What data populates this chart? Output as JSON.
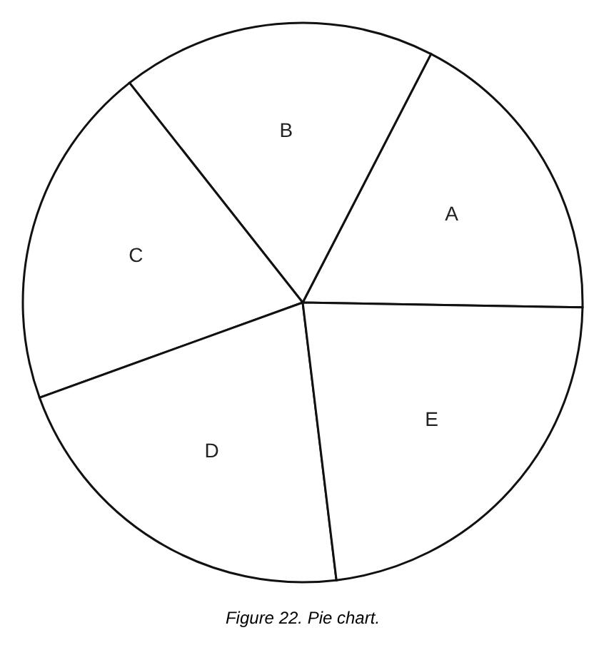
{
  "chart_data": {
    "type": "pie",
    "title": "Figure 22. Pie chart.",
    "categories": [
      "A",
      "B",
      "C",
      "D",
      "E"
    ],
    "values": [
      17.7,
      18.2,
      19.9,
      21.4,
      22.8
    ],
    "colors": [
      "#ffffff",
      "#ffffff",
      "#ffffff",
      "#ffffff",
      "#ffffff"
    ],
    "legend": false
  }
}
